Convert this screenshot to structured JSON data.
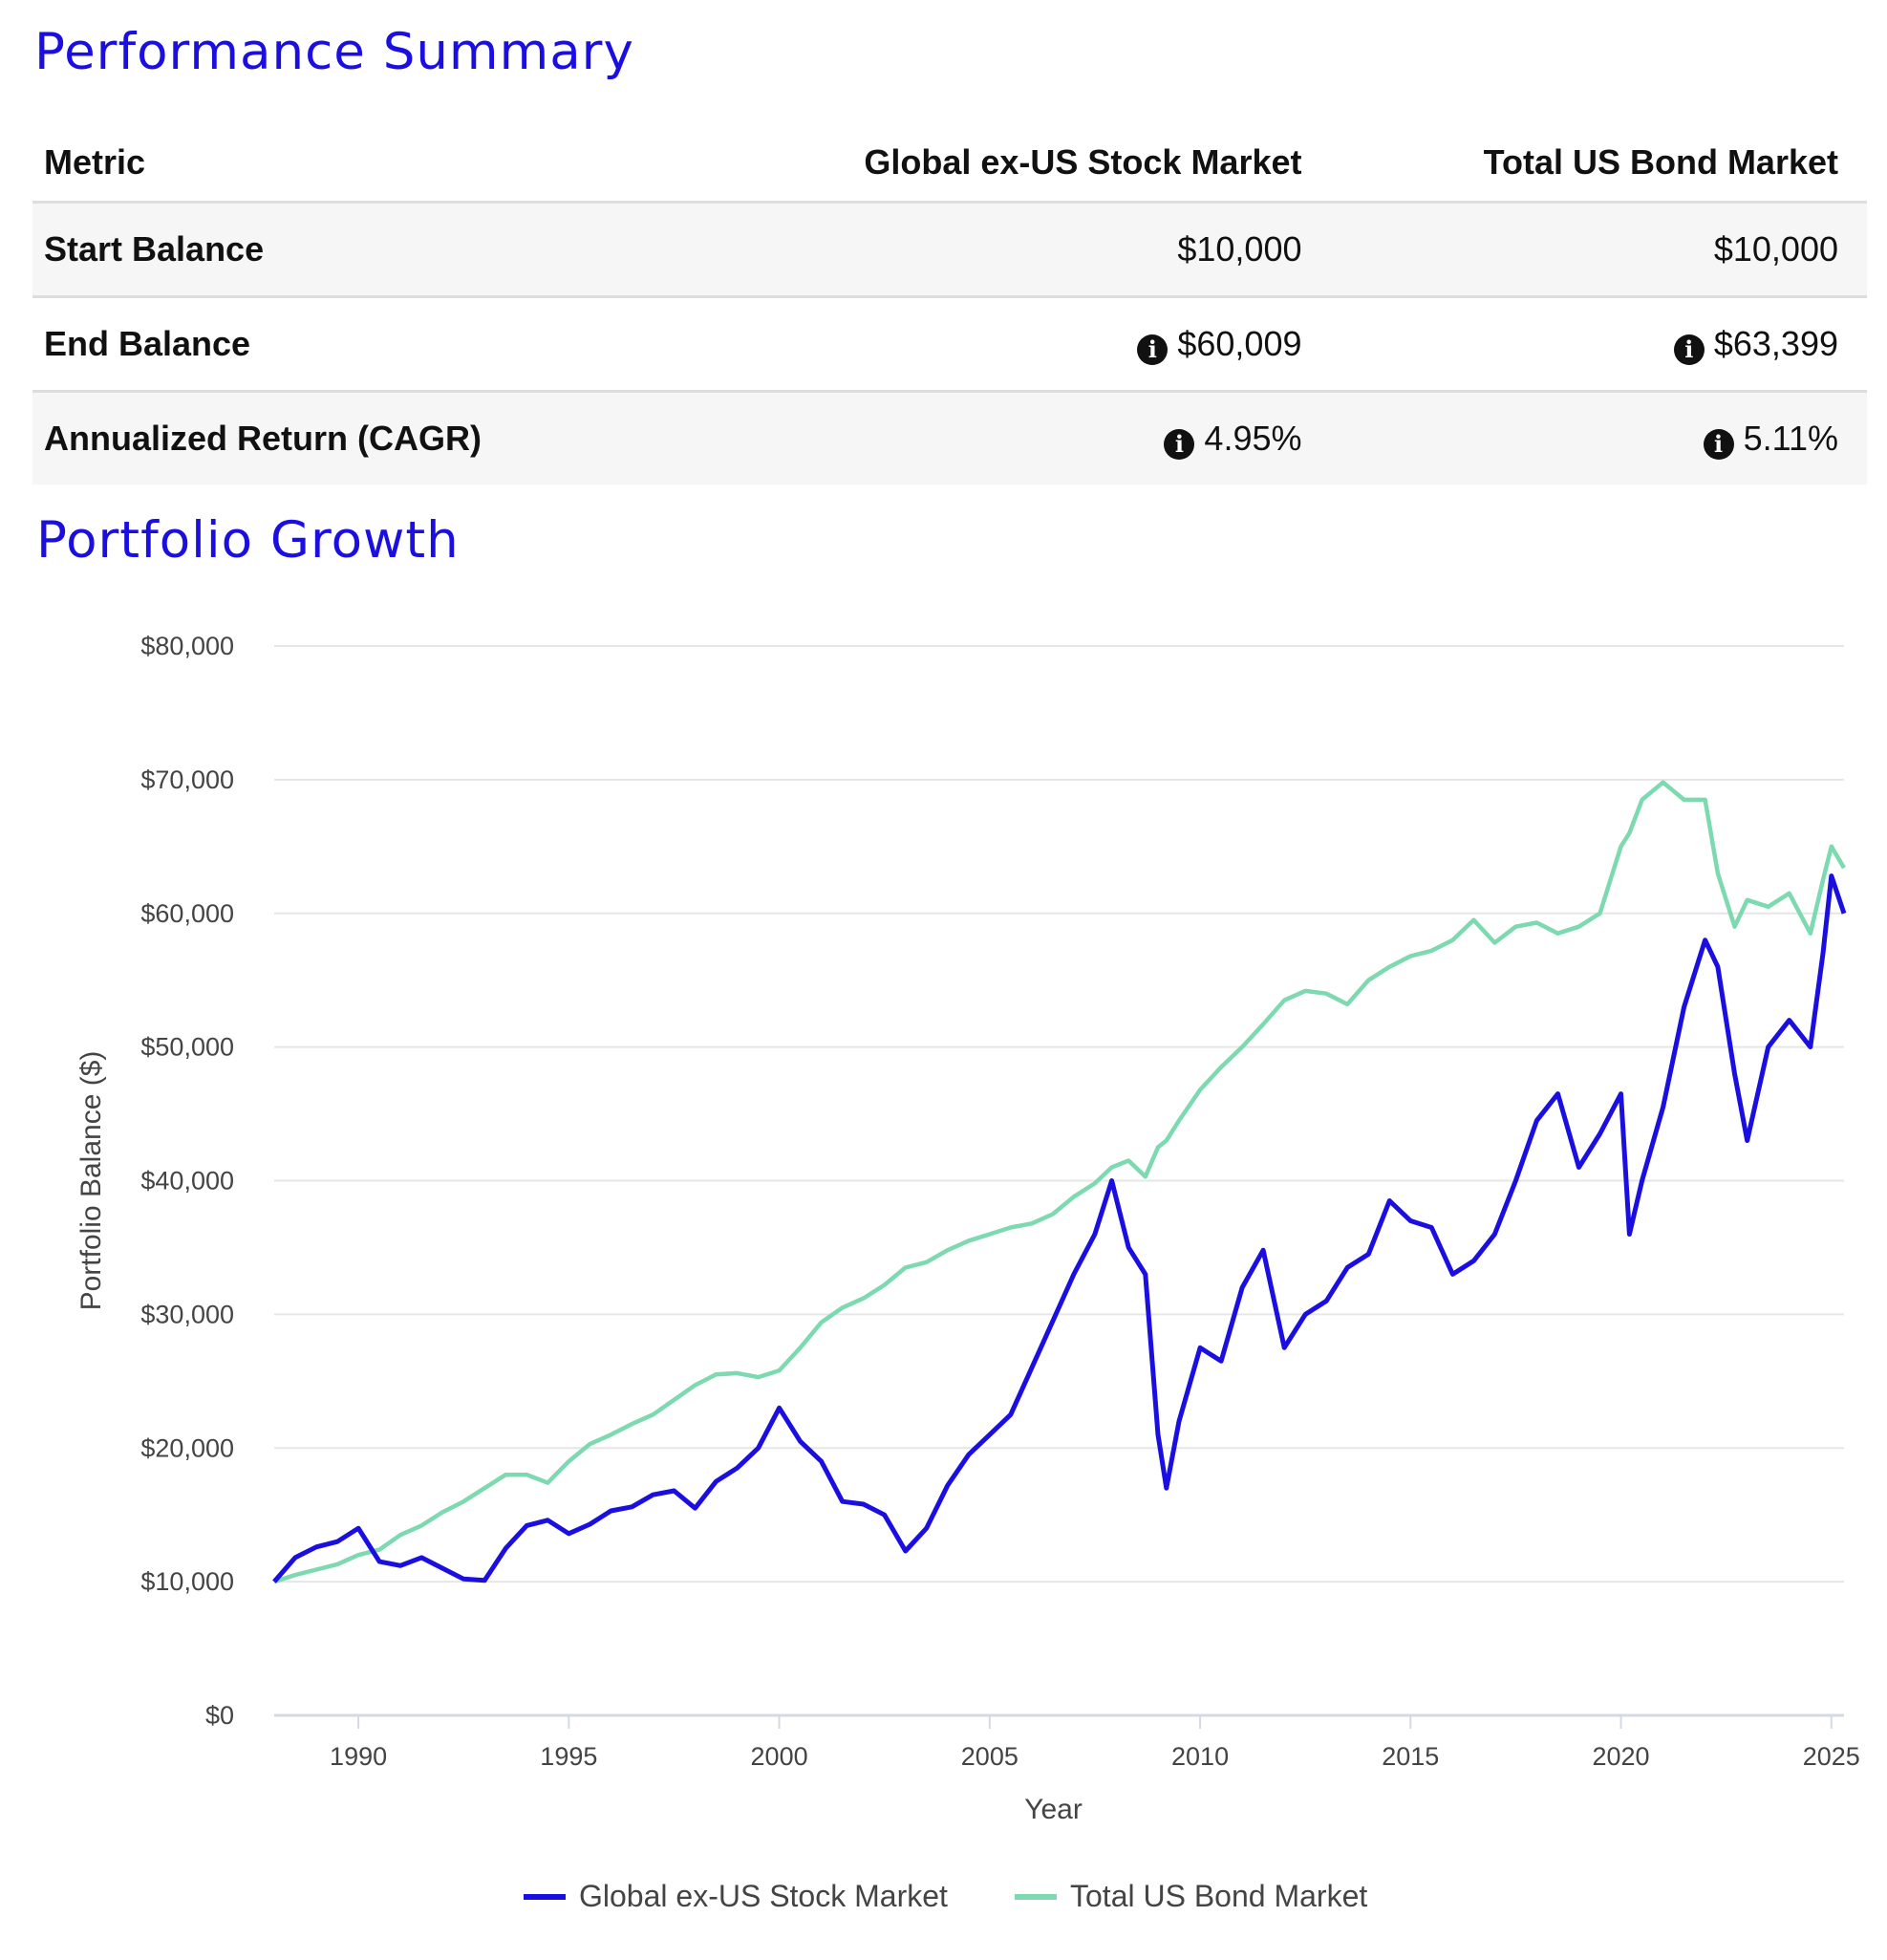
{
  "performance_summary": {
    "title": "Performance Summary",
    "columns": [
      "Metric",
      "Global ex-US Stock Market",
      "Total US Bond Market"
    ],
    "rows": [
      {
        "metric": "Start Balance",
        "values": [
          "$10,000",
          "$10,000"
        ],
        "info": false
      },
      {
        "metric": "End Balance",
        "values": [
          "$60,009",
          "$63,399"
        ],
        "info": true
      },
      {
        "metric": "Annualized Return (CAGR)",
        "values": [
          "4.95%",
          "5.11%"
        ],
        "info": true
      }
    ],
    "info_icon": "info-circle-icon"
  },
  "portfolio_growth": {
    "title": "Portfolio Growth"
  },
  "colors": {
    "heading": "#1a0fe0",
    "stock": "#1a0fe0",
    "bond": "#7dd9b0"
  },
  "chart_data": {
    "type": "line",
    "title": "Portfolio Growth",
    "xlabel": "Year",
    "ylabel": "Portfolio Balance ($)",
    "xlim": [
      1988,
      2025.3
    ],
    "ylim": [
      0,
      80000
    ],
    "x_ticks": [
      "1990",
      "1995",
      "2000",
      "2005",
      "2010",
      "2015",
      "2020",
      "2025"
    ],
    "y_ticks": [
      "$0",
      "$10,000",
      "$20,000",
      "$30,000",
      "$40,000",
      "$50,000",
      "$60,000",
      "$70,000",
      "$80,000"
    ],
    "grid": true,
    "legend_position": "bottom-center",
    "x": [
      1988.0,
      1988.5,
      1989.0,
      1989.5,
      1990.0,
      1990.5,
      1991.0,
      1991.5,
      1992.0,
      1992.5,
      1993.0,
      1993.5,
      1994.0,
      1994.5,
      1995.0,
      1995.5,
      1996.0,
      1996.5,
      1997.0,
      1997.5,
      1998.0,
      1998.5,
      1999.0,
      1999.5,
      2000.0,
      2000.5,
      2001.0,
      2001.5,
      2002.0,
      2002.5,
      2003.0,
      2003.5,
      2004.0,
      2004.5,
      2005.0,
      2005.5,
      2006.0,
      2006.5,
      2007.0,
      2007.5,
      2007.9,
      2008.3,
      2008.7,
      2009.0,
      2009.2,
      2009.5,
      2010.0,
      2010.5,
      2011.0,
      2011.5,
      2012.0,
      2012.5,
      2013.0,
      2013.5,
      2014.0,
      2014.5,
      2015.0,
      2015.5,
      2016.0,
      2016.5,
      2017.0,
      2017.5,
      2018.0,
      2018.5,
      2019.0,
      2019.5,
      2020.0,
      2020.2,
      2020.5,
      2021.0,
      2021.5,
      2022.0,
      2022.3,
      2022.7,
      2023.0,
      2023.5,
      2024.0,
      2024.5,
      2024.8,
      2025.0,
      2025.3
    ],
    "series": [
      {
        "name": "Global ex-US Stock Market",
        "color": "#1a0fe0",
        "values": [
          10000,
          11800,
          12600,
          13000,
          14000,
          11500,
          11200,
          11800,
          11000,
          10200,
          10100,
          12500,
          14200,
          14600,
          13600,
          14300,
          15300,
          15600,
          16500,
          16800,
          15500,
          17500,
          18500,
          20000,
          23000,
          20500,
          19000,
          16000,
          15800,
          15000,
          12300,
          14000,
          17200,
          19500,
          21000,
          22500,
          26000,
          29500,
          33000,
          36000,
          40000,
          35000,
          33000,
          21000,
          17000,
          22000,
          27500,
          26500,
          32000,
          34800,
          27500,
          30000,
          31000,
          33500,
          34500,
          38500,
          37000,
          36500,
          33000,
          34000,
          36000,
          40000,
          44500,
          46500,
          41000,
          43500,
          46500,
          36000,
          40000,
          45500,
          53000,
          58000,
          56000,
          48000,
          43000,
          50000,
          52000,
          50000,
          57000,
          62800,
          60000
        ]
      },
      {
        "name": "Total US Bond Market",
        "color": "#7dd9b0",
        "values": [
          10000,
          10500,
          10900,
          11300,
          12000,
          12400,
          13500,
          14200,
          15200,
          16000,
          17000,
          18000,
          18000,
          17400,
          19000,
          20300,
          21000,
          21800,
          22500,
          23600,
          24700,
          25500,
          25600,
          25300,
          25800,
          27500,
          29400,
          30500,
          31200,
          32200,
          33500,
          33900,
          34800,
          35500,
          36000,
          36500,
          36800,
          37500,
          38800,
          39800,
          41000,
          41500,
          40300,
          42500,
          43000,
          44500,
          46800,
          48500,
          50000,
          51700,
          53500,
          54200,
          54000,
          53200,
          55000,
          56000,
          56800,
          57200,
          58000,
          59500,
          57800,
          59000,
          59300,
          58500,
          59000,
          60000,
          65000,
          66000,
          68500,
          69800,
          68500,
          68500,
          63000,
          59000,
          61000,
          60500,
          61500,
          58500,
          62500,
          65000,
          63399
        ]
      }
    ]
  }
}
